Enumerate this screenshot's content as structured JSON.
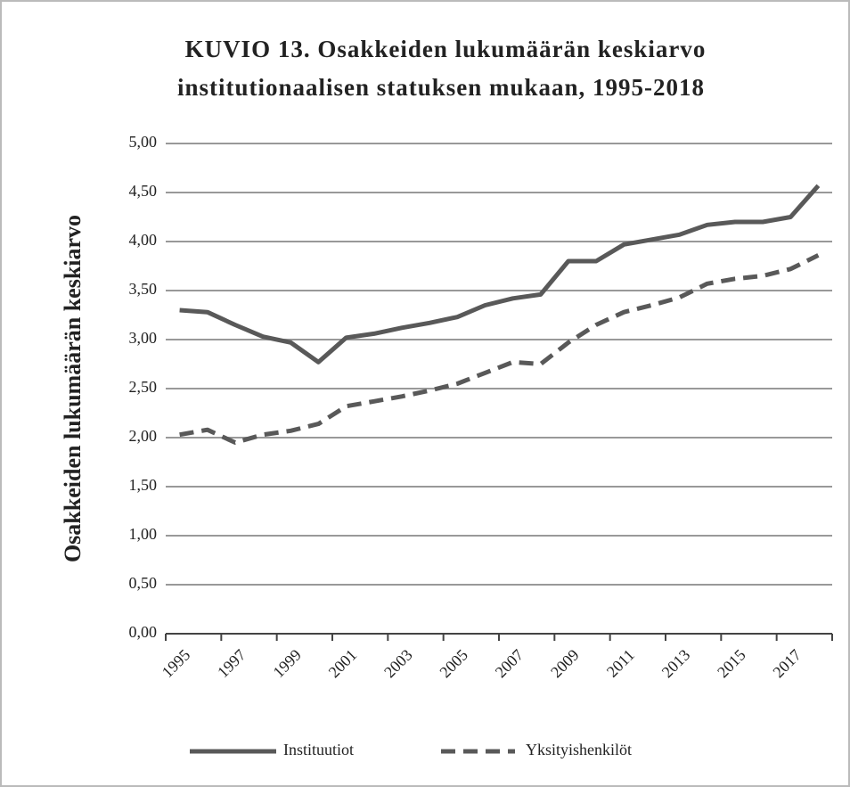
{
  "chart_data": {
    "type": "line",
    "title": [
      "KUVIO   13. Osakkeiden lukumäärän  keskiarvo",
      "institutionaalisen statuksen mukaan, 1995-2018"
    ],
    "y_label": "Osakkeiden lukumäärän  keskiarvo",
    "categories": [
      "1995",
      null,
      "1997",
      null,
      "1999",
      null,
      "2001",
      null,
      "2003",
      null,
      "2005",
      null,
      "2007",
      null,
      "2009",
      null,
      "2011",
      null,
      "2013",
      null,
      "2015",
      null,
      "2017",
      null
    ],
    "series": [
      {
        "name": "Instituutiot",
        "color": "#595959",
        "dash": false,
        "values": [
          3.3,
          3.28,
          3.15,
          3.03,
          2.97,
          2.77,
          3.02,
          3.06,
          3.12,
          3.17,
          3.23,
          3.35,
          3.42,
          3.46,
          3.8,
          3.8,
          3.97,
          4.02,
          4.07,
          4.17,
          4.2,
          4.2,
          4.25,
          4.57
        ]
      },
      {
        "name": "Yksityishenkilöt",
        "color": "#595959",
        "dash": true,
        "values": [
          2.03,
          2.08,
          1.95,
          2.03,
          2.07,
          2.14,
          2.32,
          2.37,
          2.42,
          2.48,
          2.55,
          2.66,
          2.77,
          2.75,
          2.97,
          3.15,
          3.28,
          3.35,
          3.43,
          3.57,
          3.62,
          3.65,
          3.72,
          3.86
        ]
      }
    ],
    "ylim": [
      0,
      5
    ],
    "yticks": [
      {
        "value": 0,
        "label": "0,00"
      },
      {
        "value": 0.5,
        "label": "0,50"
      },
      {
        "value": 1,
        "label": "1,00"
      },
      {
        "value": 1.5,
        "label": "1,50"
      },
      {
        "value": 2,
        "label": "2,00"
      },
      {
        "value": 2.5,
        "label": "2,50"
      },
      {
        "value": 3,
        "label": "3,00"
      },
      {
        "value": 3.5,
        "label": "3,50"
      },
      {
        "value": 4,
        "label": "4,00"
      },
      {
        "value": 4.5,
        "label": "4,50"
      },
      {
        "value": 5,
        "label": "5,00"
      }
    ],
    "grid": true,
    "legend": "bottom"
  }
}
